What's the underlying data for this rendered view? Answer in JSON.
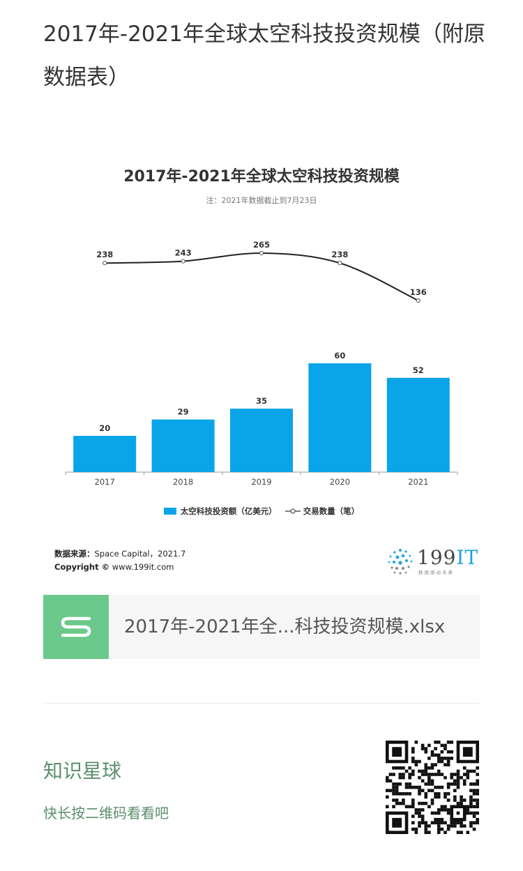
{
  "article": {
    "title": "2017年-2021年全球太空科技投资规模（附原数据表）"
  },
  "chart_data": {
    "type": "bar",
    "title": "2017年-2021年全球太空科技投资规模",
    "subtitle": "注：2021年数据截止到7月23日",
    "categories": [
      "2017",
      "2018",
      "2019",
      "2020",
      "2021"
    ],
    "series": [
      {
        "name": "太空科技投资额（亿美元）",
        "type": "bar",
        "values": [
          20,
          29,
          35,
          60,
          52
        ],
        "color": "#0aa5e8"
      },
      {
        "name": "交易数量（笔）",
        "type": "line",
        "values": [
          238,
          243,
          265,
          238,
          136
        ],
        "color": "#222222"
      }
    ],
    "grid": false,
    "legend_position": "bottom"
  },
  "source": {
    "label": "数据来源：",
    "text": "Space Capital，2021.7",
    "copyright_label": "Copyright ©",
    "copyright_text": "www.199it.com"
  },
  "brand": {
    "name_num": "199",
    "name_it": "IT",
    "tagline": "数据驱动未来"
  },
  "file_card": {
    "filename": "2017年-2021年全...科技投资规模.xlsx",
    "icon": "spreadsheet-s-icon"
  },
  "promo": {
    "title": "知识星球",
    "subtitle": "快长按二维码看看吧"
  }
}
